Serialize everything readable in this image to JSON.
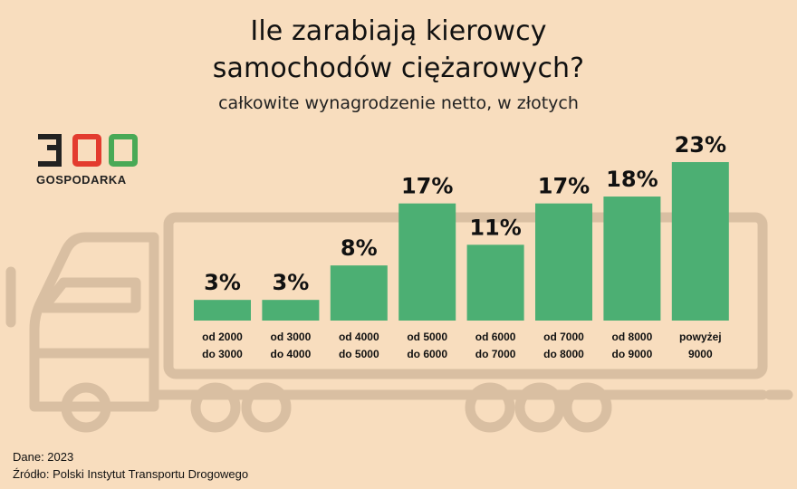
{
  "title": "Ile zarabiają kierowcy\nsamochodów ciężarowych?",
  "subtitle": "całkowite wynagrodzenie netto, w złotych",
  "logo": {
    "number": "300",
    "label": "GOSPODARKA"
  },
  "footer": {
    "data_line": "Dane: 2023",
    "source_line": "Źródło: Polski Instytut Transportu Drogowego"
  },
  "colors": {
    "background": "#f8ddbe",
    "bar": "#4caf73",
    "truck_outline": "#d9bfa2",
    "logo_dark": "#222222",
    "logo_red": "#e33b2f",
    "logo_green": "#49a956"
  },
  "chart_data": {
    "type": "bar",
    "categories": [
      [
        "od 2000",
        "do 3000"
      ],
      [
        "od 3000",
        "do 4000"
      ],
      [
        "od 4000",
        "do 5000"
      ],
      [
        "od 5000",
        "do 6000"
      ],
      [
        "od 6000",
        "do 7000"
      ],
      [
        "od 7000",
        "do 8000"
      ],
      [
        "od 8000",
        "do 9000"
      ],
      [
        "powyżej",
        "9000"
      ]
    ],
    "values": [
      3,
      3,
      8,
      17,
      11,
      17,
      18,
      23
    ],
    "value_labels": [
      "3%",
      "3%",
      "8%",
      "17%",
      "11%",
      "17%",
      "18%",
      "23%"
    ],
    "grid": false,
    "legend": "none"
  }
}
